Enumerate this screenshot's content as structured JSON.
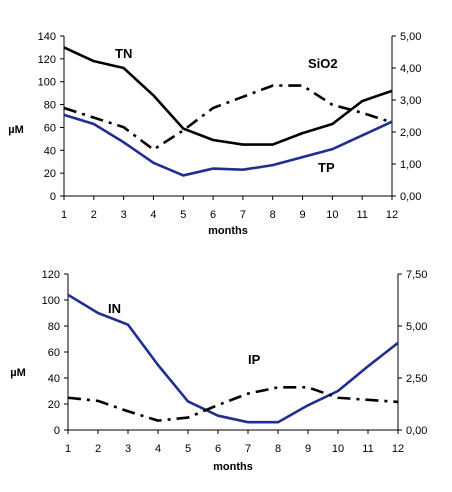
{
  "chart_data": [
    {
      "type": "line",
      "x": [
        1,
        2,
        3,
        4,
        5,
        6,
        7,
        8,
        9,
        10,
        11,
        12
      ],
      "xlabel": "months",
      "ylabel": "µM",
      "ylim": [
        0,
        140
      ],
      "yticks": [
        "0",
        "20",
        "40",
        "60",
        "80",
        "100",
        "120",
        "140"
      ],
      "y2lim": [
        0,
        5
      ],
      "y2ticks": [
        "0,00",
        "1,00",
        "2,00",
        "3,00",
        "4,00",
        "5,00"
      ],
      "grid": false,
      "legend": "none",
      "series": [
        {
          "name": "TN",
          "axis": "left",
          "style": "solid",
          "color": "#000000",
          "values": [
            130,
            118,
            112,
            88,
            59,
            49,
            45,
            45,
            55,
            63,
            83,
            92
          ]
        },
        {
          "name": "SiO2",
          "axis": "left",
          "style": "solid",
          "color": "#1f2f8f",
          "values": [
            71,
            63,
            47,
            29,
            18,
            24,
            23,
            27,
            34,
            41,
            53,
            65
          ]
        },
        {
          "name": "TP",
          "axis": "right",
          "style": "dashdot",
          "color": "#000000",
          "values": [
            2.75,
            2.45,
            2.15,
            1.45,
            2.05,
            2.75,
            3.1,
            3.45,
            3.45,
            2.85,
            2.6,
            2.3
          ]
        }
      ]
    },
    {
      "type": "line",
      "x": [
        1,
        2,
        3,
        4,
        5,
        6,
        7,
        8,
        9,
        10,
        11,
        12
      ],
      "xlabel": "months",
      "ylabel": "µM",
      "ylim": [
        0,
        120
      ],
      "yticks": [
        "0",
        "20",
        "40",
        "60",
        "80",
        "100",
        "120"
      ],
      "y2lim": [
        0,
        7.5
      ],
      "y2ticks": [
        "0,00",
        "2,50",
        "5,00",
        "7,50"
      ],
      "grid": false,
      "legend": "none",
      "series": [
        {
          "name": "IN",
          "axis": "left",
          "style": "solid",
          "color": "#1f2f8f",
          "values": [
            104,
            90,
            81,
            50,
            22,
            11,
            6,
            6,
            19,
            30,
            49,
            67
          ]
        },
        {
          "name": "IP",
          "axis": "right",
          "style": "dashdot",
          "color": "#000000",
          "values": [
            1.55,
            1.4,
            0.9,
            0.45,
            0.6,
            1.2,
            1.75,
            2.05,
            2.05,
            1.55,
            1.45,
            1.35
          ]
        }
      ]
    }
  ]
}
